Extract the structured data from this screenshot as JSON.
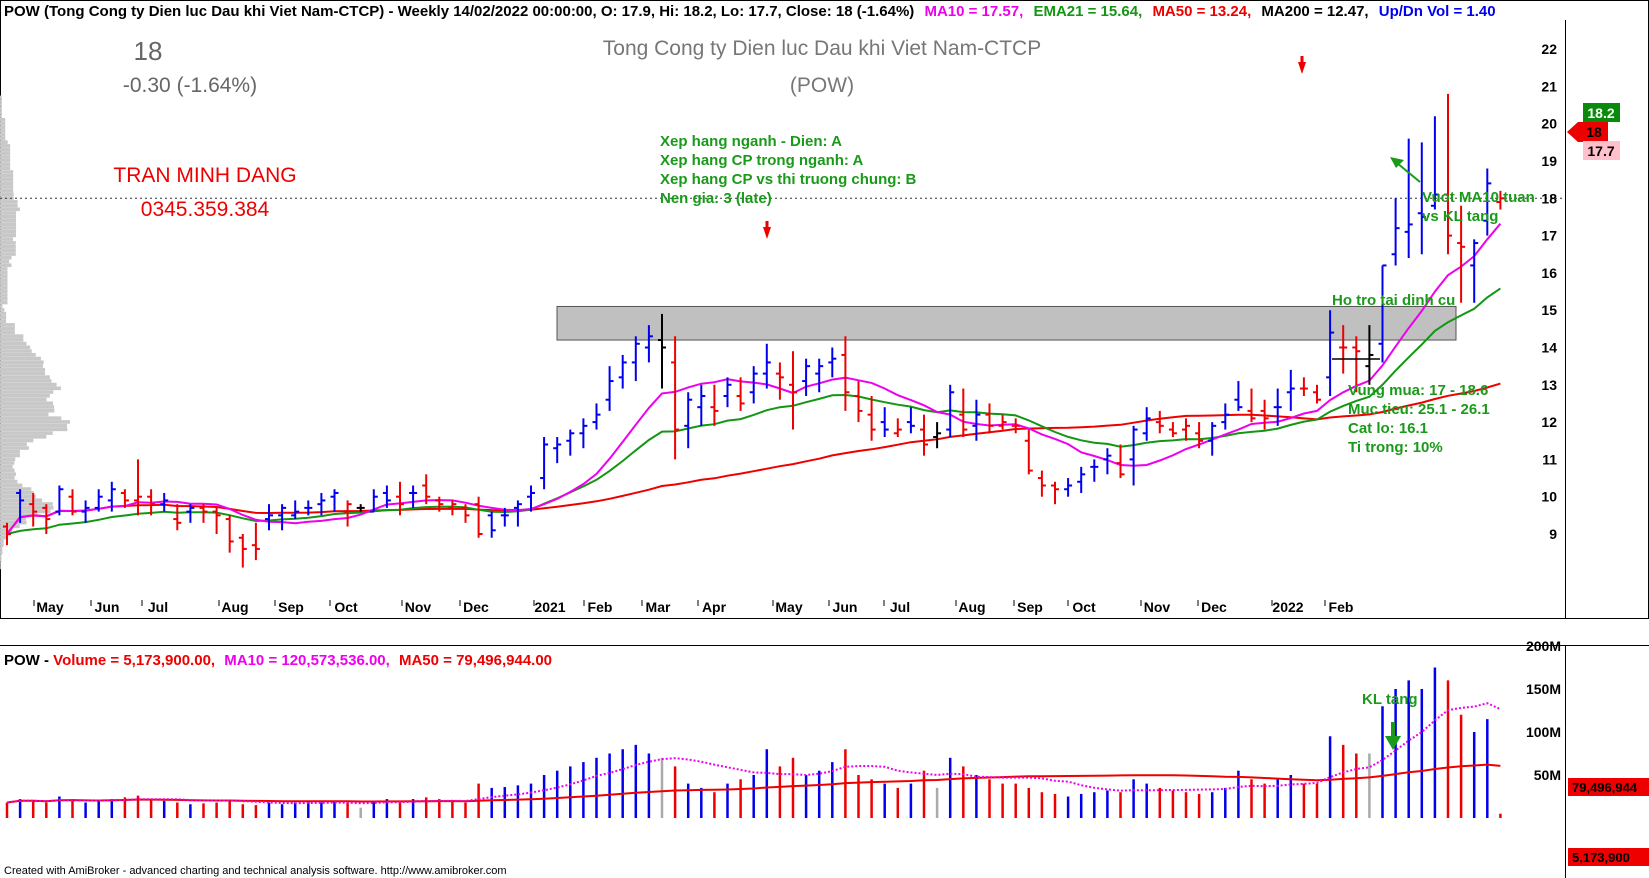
{
  "header": {
    "title": "POW (Tong Cong ty Dien luc Dau khi Viet Nam-CTCP) - Weekly 14/02/2022 00:00:00, O: 17.9, Hi: 18.2, Lo: 17.7, Close: 18 (-1.64%)",
    "ma10": "MA10 = 17.57,",
    "ema21": "EMA21 = 15.64,",
    "ma50": "MA50 = 13.24,",
    "ma200": "MA200 = 12.47,",
    "vol_ratio": "Up/Dn Vol = 1.40"
  },
  "quote": {
    "price": "18",
    "change": "-0.30 (-1.64%)"
  },
  "company": {
    "name": "Tong Cong ty Dien luc Dau khi Viet Nam-CTCP",
    "ticker": "(POW)"
  },
  "author": {
    "name": "TRAN MINH DANG",
    "phone": "0345.359.384"
  },
  "ratings": [
    "Xep hang nganh - Dien: A",
    "Xep hang CP trong nganh: A",
    "Xep hang CP vs thi truong chung: B",
    "Nen gia: 3 (late)"
  ],
  "annotations": {
    "breakout": [
      "Vuot MA10 tuan",
      "vs KL tang"
    ],
    "support": "Ho tro tai dinh cu",
    "plan": [
      "Vung mua: 17 - 18.6",
      "Muc tieu: 25.1 - 26.1",
      "Cat lo: 16.1",
      "Ti trong: 10%"
    ],
    "volume_note": "KL tang"
  },
  "price_labels": {
    "high": "18.2",
    "close": "18",
    "low": "17.7"
  },
  "volume_header": {
    "prefix": "POW - ",
    "volume": "Volume = 5,173,900.00,",
    "ma10": "MA10 = 120,573,536.00,",
    "ma50": "MA50 = 79,496,944.00"
  },
  "volume_labels": {
    "ma50": "79,496,944",
    "volume": "5,173,900"
  },
  "footer": "Created with AmiBroker - advanced charting and technical analysis software. http://www.amibroker.com",
  "colors": {
    "up": "#0000ee",
    "down": "#ee0000",
    "ma10": "#ee00ee",
    "ema21": "#149614",
    "ma200": "#ee0000",
    "zone": "#c0c0c0"
  },
  "chart_data": {
    "type": "candlestick",
    "price_axis": {
      "ticks": [
        "9",
        "10",
        "11",
        "12",
        "13",
        "14",
        "15",
        "16",
        "17",
        "18",
        "19",
        "20",
        "21",
        "22"
      ],
      "ylim": [
        8.3,
        22.3
      ]
    },
    "volume_axis": {
      "ticks": [
        "50M",
        "100M",
        "150M",
        "200M"
      ],
      "ylim": [
        0,
        225
      ]
    },
    "x_labels": [
      "May",
      "Jun",
      "Jul",
      "Aug",
      "Sep",
      "Oct",
      "Nov",
      "Dec",
      "2021",
      "Feb",
      "Mar",
      "Apr",
      "May",
      "Jun",
      "Jul",
      "Aug",
      "Sep",
      "Oct",
      "Nov",
      "Dec",
      "2022",
      "Feb"
    ],
    "resistance_zone": [
      14.2,
      15.1
    ],
    "bars": [
      [
        9.2,
        9.3,
        8.7,
        9.0,
        "d",
        18
      ],
      [
        10.1,
        10.2,
        9.3,
        9.9,
        "u",
        22
      ],
      [
        9.8,
        10.1,
        9.2,
        9.6,
        "d",
        20
      ],
      [
        9.7,
        9.8,
        9.0,
        9.4,
        "d",
        18
      ],
      [
        9.6,
        10.3,
        9.5,
        10.2,
        "u",
        25
      ],
      [
        10.0,
        10.2,
        9.5,
        9.6,
        "d",
        22
      ],
      [
        9.6,
        9.9,
        9.3,
        9.7,
        "u",
        18
      ],
      [
        9.7,
        10.2,
        9.6,
        10.0,
        "u",
        20
      ],
      [
        9.9,
        10.4,
        9.6,
        10.2,
        "u",
        22
      ],
      [
        10.1,
        10.2,
        9.7,
        9.9,
        "d",
        24
      ],
      [
        9.9,
        11.0,
        9.5,
        10.0,
        "d",
        26
      ],
      [
        10.0,
        10.2,
        9.5,
        9.8,
        "d",
        22
      ],
      [
        9.8,
        10.1,
        9.6,
        9.9,
        "u",
        20
      ],
      [
        9.4,
        9.8,
        9.1,
        9.3,
        "d",
        18
      ],
      [
        9.6,
        9.8,
        9.3,
        9.7,
        "u",
        16
      ],
      [
        9.7,
        9.8,
        9.3,
        9.6,
        "d",
        17
      ],
      [
        9.6,
        9.7,
        9.0,
        9.5,
        "d",
        18
      ],
      [
        9.4,
        9.5,
        8.5,
        8.8,
        "d",
        20
      ],
      [
        8.9,
        9.0,
        8.1,
        8.6,
        "d",
        16
      ],
      [
        8.7,
        9.3,
        8.3,
        8.6,
        "d",
        15
      ],
      [
        9.4,
        9.8,
        9.1,
        9.5,
        "u",
        18
      ],
      [
        9.5,
        9.8,
        9.1,
        9.7,
        "u",
        16
      ],
      [
        9.5,
        9.9,
        9.4,
        9.6,
        "u",
        18
      ],
      [
        9.7,
        9.9,
        9.5,
        9.7,
        "u",
        20
      ],
      [
        9.8,
        10.1,
        9.5,
        9.9,
        "u",
        18
      ],
      [
        10.0,
        10.2,
        9.6,
        10.1,
        "u",
        20
      ],
      [
        9.6,
        9.9,
        9.2,
        9.8,
        "d",
        18
      ],
      [
        9.7,
        9.8,
        9.6,
        9.7,
        "n",
        12
      ],
      [
        9.6,
        10.2,
        9.6,
        10.0,
        "u",
        20
      ],
      [
        10.1,
        10.3,
        9.7,
        9.9,
        "u",
        22
      ],
      [
        10.0,
        10.4,
        9.5,
        9.8,
        "d",
        20
      ],
      [
        10.1,
        10.3,
        9.7,
        10.1,
        "u",
        22
      ],
      [
        10.3,
        10.6,
        9.8,
        10.0,
        "d",
        24
      ],
      [
        9.9,
        10.0,
        9.6,
        9.8,
        "d",
        22
      ],
      [
        9.7,
        9.9,
        9.5,
        9.8,
        "d",
        20
      ],
      [
        9.7,
        9.8,
        9.3,
        9.5,
        "d",
        18
      ],
      [
        9.8,
        10.0,
        8.9,
        9.0,
        "d",
        40
      ],
      [
        9.5,
        9.6,
        8.9,
        9.1,
        "u",
        35
      ],
      [
        9.5,
        9.7,
        9.2,
        9.5,
        "u",
        36
      ],
      [
        9.7,
        9.9,
        9.2,
        9.8,
        "u",
        38
      ],
      [
        10.0,
        10.3,
        9.6,
        10.1,
        "u",
        40
      ],
      [
        10.5,
        11.6,
        10.2,
        11.4,
        "u",
        50
      ],
      [
        11.3,
        11.6,
        10.9,
        11.4,
        "u",
        55
      ],
      [
        11.5,
        11.8,
        11.1,
        11.7,
        "u",
        60
      ],
      [
        11.7,
        12.1,
        11.3,
        11.9,
        "u",
        65
      ],
      [
        12.0,
        12.5,
        11.8,
        12.2,
        "u",
        70
      ],
      [
        12.6,
        13.5,
        12.3,
        13.1,
        "u",
        75
      ],
      [
        13.2,
        13.8,
        12.9,
        13.6,
        "u",
        80
      ],
      [
        13.6,
        14.3,
        13.1,
        14.1,
        "u",
        85
      ],
      [
        14.0,
        14.6,
        13.6,
        14.3,
        "u",
        75
      ],
      [
        14.2,
        14.9,
        12.9,
        14.0,
        "n",
        70
      ],
      [
        13.6,
        14.3,
        11.0,
        11.8,
        "d",
        60
      ],
      [
        11.9,
        12.8,
        11.3,
        12.6,
        "u",
        40
      ],
      [
        12.4,
        13.0,
        11.9,
        12.7,
        "u",
        35
      ],
      [
        12.4,
        13.0,
        11.9,
        12.3,
        "d",
        30
      ],
      [
        12.7,
        13.2,
        12.4,
        13.0,
        "u",
        40
      ],
      [
        12.7,
        13.2,
        12.3,
        12.5,
        "d",
        45
      ],
      [
        12.8,
        13.5,
        12.5,
        13.3,
        "u",
        50
      ],
      [
        13.3,
        14.1,
        12.9,
        13.6,
        "u",
        80
      ],
      [
        13.3,
        13.6,
        12.6,
        13.2,
        "d",
        60
      ],
      [
        13.0,
        13.9,
        11.8,
        12.8,
        "d",
        70
      ],
      [
        13.1,
        13.7,
        12.7,
        13.5,
        "u",
        50
      ],
      [
        13.3,
        13.7,
        12.8,
        13.5,
        "u",
        55
      ],
      [
        13.6,
        14.0,
        13.2,
        13.7,
        "u",
        65
      ],
      [
        13.8,
        14.3,
        12.3,
        12.8,
        "d",
        80
      ],
      [
        12.7,
        13.1,
        12.0,
        12.3,
        "d",
        50
      ],
      [
        12.2,
        12.7,
        11.5,
        11.8,
        "d",
        45
      ],
      [
        12.0,
        12.4,
        11.6,
        11.8,
        "u",
        40
      ],
      [
        11.7,
        12.1,
        11.6,
        11.8,
        "d",
        35
      ],
      [
        12.0,
        12.4,
        11.7,
        11.9,
        "u",
        40
      ],
      [
        11.8,
        12.2,
        11.1,
        11.4,
        "d",
        55
      ],
      [
        11.6,
        12.0,
        11.3,
        11.7,
        "n",
        35
      ],
      [
        11.8,
        13.0,
        11.6,
        12.8,
        "u",
        70
      ],
      [
        12.2,
        12.9,
        11.6,
        11.8,
        "d",
        60
      ],
      [
        11.9,
        12.6,
        11.5,
        12.2,
        "u",
        50
      ],
      [
        12.2,
        12.5,
        11.7,
        11.9,
        "d",
        45
      ],
      [
        11.9,
        12.2,
        11.8,
        12.0,
        "d",
        40
      ],
      [
        11.9,
        12.1,
        11.7,
        11.9,
        "d",
        40
      ],
      [
        11.5,
        11.8,
        10.6,
        10.7,
        "d",
        35
      ],
      [
        10.5,
        10.7,
        10.0,
        10.3,
        "d",
        30
      ],
      [
        10.3,
        10.4,
        9.8,
        10.2,
        "d",
        28
      ],
      [
        10.2,
        10.5,
        10.0,
        10.3,
        "u",
        25
      ],
      [
        10.4,
        10.8,
        10.1,
        10.6,
        "u",
        28
      ],
      [
        10.8,
        11.0,
        10.4,
        10.8,
        "u",
        30
      ],
      [
        11.0,
        11.3,
        10.6,
        11.1,
        "u",
        32
      ],
      [
        10.9,
        11.4,
        10.5,
        10.6,
        "d",
        30
      ],
      [
        11.0,
        11.9,
        10.3,
        11.8,
        "u",
        45
      ],
      [
        11.7,
        12.4,
        11.5,
        12.1,
        "u",
        40
      ],
      [
        12.0,
        12.3,
        11.7,
        11.9,
        "d",
        35
      ],
      [
        11.8,
        12.0,
        11.6,
        11.7,
        "d",
        32
      ],
      [
        11.8,
        12.1,
        11.5,
        11.9,
        "d",
        30
      ],
      [
        11.7,
        12.0,
        11.3,
        11.5,
        "d",
        28
      ],
      [
        11.5,
        12.0,
        11.1,
        11.9,
        "u",
        30
      ],
      [
        12.0,
        12.5,
        11.8,
        12.2,
        "u",
        35
      ],
      [
        12.6,
        13.1,
        12.3,
        12.4,
        "u",
        55
      ],
      [
        12.3,
        12.9,
        12.0,
        12.1,
        "d",
        45
      ],
      [
        12.3,
        12.6,
        11.8,
        12.1,
        "d",
        40
      ],
      [
        12.4,
        12.9,
        11.9,
        12.4,
        "u",
        45
      ],
      [
        12.8,
        13.4,
        12.3,
        12.9,
        "u",
        50
      ],
      [
        12.9,
        13.2,
        12.7,
        12.9,
        "d",
        40
      ],
      [
        12.8,
        13.0,
        12.5,
        12.6,
        "d",
        40
      ],
      [
        13.2,
        15.0,
        12.7,
        14.4,
        "u",
        95
      ],
      [
        14.0,
        14.6,
        13.3,
        14.0,
        "d",
        85
      ],
      [
        14.0,
        14.3,
        12.8,
        13.9,
        "d",
        75
      ],
      [
        13.5,
        14.6,
        13.0,
        13.8,
        "n",
        75
      ],
      [
        14.1,
        16.2,
        13.6,
        16.2,
        "u",
        130
      ],
      [
        16.5,
        18.0,
        16.2,
        17.2,
        "u",
        150
      ],
      [
        17.1,
        19.6,
        16.4,
        17.3,
        "u",
        160
      ],
      [
        17.6,
        19.5,
        16.5,
        17.5,
        "u",
        150
      ],
      [
        17.8,
        20.2,
        17.7,
        18.1,
        "u",
        175
      ],
      [
        18.1,
        20.8,
        16.5,
        17.0,
        "d",
        160
      ],
      [
        16.8,
        17.8,
        15.2,
        16.7,
        "d",
        120
      ],
      [
        16.2,
        16.9,
        15.2,
        16.8,
        "u",
        100
      ],
      [
        17.4,
        18.8,
        17.0,
        18.4,
        "u",
        115
      ],
      [
        17.9,
        18.2,
        17.7,
        18.0,
        "d",
        5
      ]
    ]
  }
}
